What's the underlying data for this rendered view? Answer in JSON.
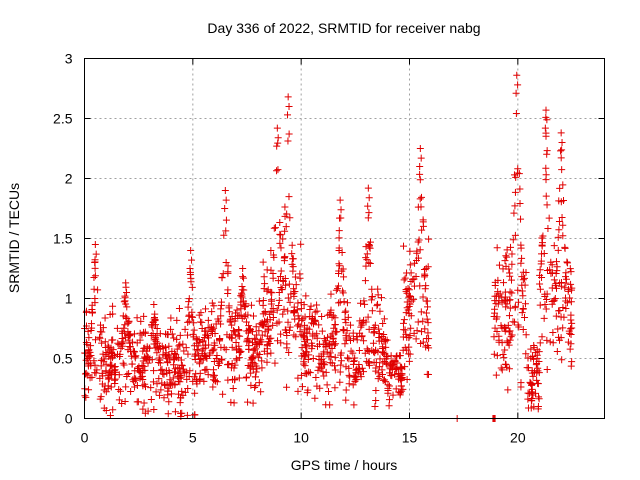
{
  "chart_data": {
    "type": "scatter",
    "title": "Day 336 of 2022, SRMTID for receiver nabg",
    "xlabel": "GPS time / hours",
    "ylabel": "SRMTID / TECUs",
    "xlim": [
      0,
      24
    ],
    "ylim": [
      0,
      3
    ],
    "xticks": [
      0,
      5,
      10,
      15,
      20
    ],
    "xtick_labels": [
      "0",
      "5",
      "10",
      "15",
      "20"
    ],
    "yticks": [
      0,
      0.5,
      1,
      1.5,
      2,
      2.5,
      3
    ],
    "ytick_labels": [
      "0",
      "0.5",
      "1",
      "1.5",
      "2",
      "2.5",
      "3"
    ],
    "grid": true,
    "marker": "+",
    "color": "#e00000",
    "series": [
      {
        "name": "SRMTID",
        "note": "approximately 2000 red plus markers; values summarized as activity segments (hours, TECU)",
        "segments": [
          {
            "x_start": 0.0,
            "x_end": 4.4,
            "y_base": 0.45,
            "y_spread": 0.35,
            "peaks": [
              {
                "x": 0.5,
                "y": 1.45
              },
              {
                "x": 1.9,
                "y": 1.13
              },
              {
                "x": 3.2,
                "y": 0.95
              }
            ]
          },
          {
            "x_start": 4.4,
            "x_end": 5.2,
            "y_base": 0.3,
            "y_spread": 0.35,
            "peaks": [
              {
                "x": 4.9,
                "y": 1.4
              }
            ]
          },
          {
            "x_start": 5.2,
            "x_end": 8.2,
            "y_base": 0.55,
            "y_spread": 0.35,
            "peaks": [
              {
                "x": 6.5,
                "y": 1.9
              },
              {
                "x": 7.3,
                "y": 1.25
              }
            ]
          },
          {
            "x_start": 8.2,
            "x_end": 10.0,
            "y_base": 0.85,
            "y_spread": 0.45,
            "peaks": [
              {
                "x": 8.9,
                "y": 2.42
              },
              {
                "x": 9.4,
                "y": 2.68
              }
            ]
          },
          {
            "x_start": 10.0,
            "x_end": 14.0,
            "y_base": 0.6,
            "y_spread": 0.35,
            "peaks": [
              {
                "x": 11.8,
                "y": 1.82
              },
              {
                "x": 13.1,
                "y": 1.92
              }
            ]
          },
          {
            "x_start": 14.0,
            "x_end": 14.7,
            "y_base": 0.35,
            "y_spread": 0.2,
            "peaks": []
          },
          {
            "x_start": 14.7,
            "x_end": 15.9,
            "y_base": 0.9,
            "y_spread": 0.45,
            "peaks": [
              {
                "x": 15.5,
                "y": 2.25
              }
            ]
          },
          {
            "x_start": 17.2,
            "x_end": 17.2,
            "y_base": 0.0,
            "y_spread": 0.0,
            "peaks": []
          },
          {
            "x_start": 18.85,
            "x_end": 18.95,
            "y_base": 0.0,
            "y_spread": 0.0,
            "peaks": []
          },
          {
            "x_start": 18.9,
            "x_end": 20.4,
            "y_base": 0.9,
            "y_spread": 0.5,
            "peaks": [
              {
                "x": 19.95,
                "y": 2.86
              }
            ]
          },
          {
            "x_start": 20.4,
            "x_end": 21.0,
            "y_base": 0.35,
            "y_spread": 0.3,
            "peaks": []
          },
          {
            "x_start": 21.0,
            "x_end": 22.5,
            "y_base": 0.9,
            "y_spread": 0.45,
            "peaks": [
              {
                "x": 21.3,
                "y": 2.57
              },
              {
                "x": 22.0,
                "y": 2.38
              }
            ]
          }
        ]
      }
    ]
  }
}
